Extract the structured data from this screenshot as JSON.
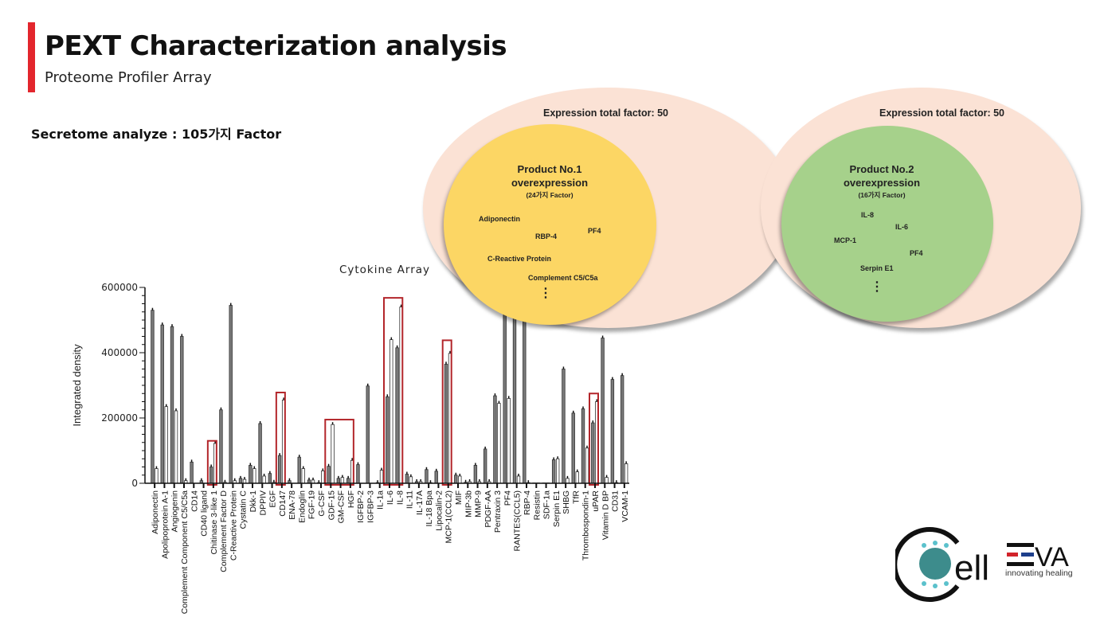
{
  "header": {
    "title": "PEXT Characterization analysis",
    "subtitle": "Proteome Profiler Array"
  },
  "section_label": "Secretome analyze : 105가지 Factor",
  "venn": [
    {
      "total_label": "Expression total factor: 50",
      "title_line1": "Product No.1",
      "title_line2": "overexpression",
      "count": "(24가지 Factor)",
      "factors": [
        "Adiponectin",
        "RBP-4",
        "PF4",
        "C-Reactive Protein",
        "Complement C5/C5a"
      ],
      "ellipsis": "⋮",
      "colors": {
        "outer": "#fbe2d5",
        "inner": "#fcd664"
      }
    },
    {
      "total_label": "Expression total factor: 50",
      "title_line1": "Product No.2",
      "title_line2": "overexpression",
      "count": "(16가지 Factor)",
      "factors": [
        "IL-8",
        "IL-6",
        "MCP-1",
        "PF4",
        "Serpin E1"
      ],
      "ellipsis": "⋮",
      "colors": {
        "outer": "#fbe2d5",
        "inner": "#a6d18b"
      }
    }
  ],
  "logo": {
    "text": "CellEVA",
    "tagline": "innovating healing"
  },
  "chart_data": {
    "type": "bar",
    "title": "Cytokine Array",
    "xlabel": "",
    "ylabel": "Integrated density",
    "ylim": [
      0,
      600000
    ],
    "yticks": [
      "0",
      "200000",
      "400000",
      "600000"
    ],
    "categories": [
      "Adiponectin",
      "Apolipoprotein A-1",
      "Angiogenin",
      "Complement Component C5/C5a",
      "CD14",
      "CD40 ligand",
      "Chitinase 3-like 1",
      "Complement Factor D",
      "C-Reactive Protein",
      "Cystatin C",
      "Dkk-1",
      "DPPIV",
      "EGF",
      "CD147",
      "ENA-78",
      "Endoglin",
      "FGF-19",
      "G-CSF",
      "GDF-15",
      "GM-CSF",
      "HGF",
      "IGFBP-2",
      "IGFBP-3",
      "IL-1a",
      "IL-6",
      "IL-8",
      "IL-11",
      "IL-17A",
      "IL-18 Bpa",
      "Lipocalin-2",
      "MCP-1(CCL2)",
      "MIF",
      "MIP-3b",
      "MMP-9",
      "PDGF-AA",
      "Pentraxin 3",
      "PF4",
      "RANTES(CCL5)",
      "RBP-4",
      "Resistin",
      "SDF-1a",
      "Serpin E1",
      "SHBG",
      "TfR",
      "Thrombospondin-1",
      "uPAR",
      "Vitamin D BP",
      "CD31",
      "VCAM-1"
    ],
    "series": [
      {
        "name": "gray",
        "color": "#7a7a7a",
        "values": [
          530000,
          485000,
          480000,
          450000,
          65000,
          8000,
          50000,
          225000,
          545000,
          15000,
          55000,
          183000,
          30000,
          85000,
          8000,
          80000,
          10000,
          2000,
          52000,
          15000,
          15000,
          57000,
          298000,
          2000,
          265000,
          415000,
          28000,
          5000,
          42000,
          37000,
          365000,
          25000,
          3000,
          55000,
          105000,
          268000,
          650000,
          650000,
          650000,
          1000,
          1000,
          72000,
          350000,
          215000,
          228000,
          185000,
          445000,
          318000,
          330000
        ]
      },
      {
        "name": "white",
        "color": "#ffffff",
        "values": [
          45000,
          235000,
          222000,
          8000,
          0,
          0,
          122000,
          3000,
          8000,
          12000,
          45000,
          22000,
          3000,
          255000,
          0,
          45000,
          10000,
          38000,
          180000,
          18000,
          70000,
          0,
          0,
          40000,
          440000,
          540000,
          20000,
          5000,
          2000,
          0,
          398000,
          22000,
          5000,
          5000,
          5000,
          245000,
          260000,
          22000,
          2000,
          1000,
          1000,
          75000,
          15000,
          35000,
          108000,
          250000,
          18000,
          2000,
          60000
        ]
      }
    ],
    "highlights": [
      {
        "from": "Chitinase 3-like 1",
        "to": "Chitinase 3-like 1",
        "top": 130000
      },
      {
        "from": "CD147",
        "to": "CD147",
        "top": 278000
      },
      {
        "from": "GDF-15",
        "to": "HGF",
        "top": 195000
      },
      {
        "from": "IL-6",
        "to": "IL-8",
        "top": 568000
      },
      {
        "from": "MCP-1(CCL2)",
        "to": "MCP-1(CCL2)",
        "top": 438000
      },
      {
        "from": "uPAR",
        "to": "uPAR",
        "top": 275000
      }
    ],
    "highlight_color": "#b3262b",
    "grid": false
  }
}
